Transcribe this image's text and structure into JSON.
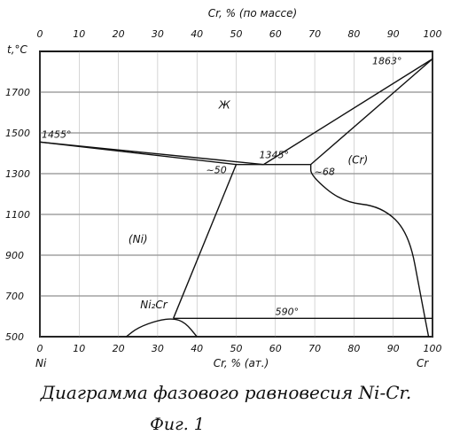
{
  "chart_data": {
    "type": "diagram",
    "top_axis": {
      "title": "Cr, % (по массе)",
      "ticks": [
        "0",
        "10",
        "20",
        "30",
        "40",
        "50",
        "60",
        "70",
        "80",
        "90",
        "100"
      ],
      "range": [
        0,
        100
      ]
    },
    "bottom_axis": {
      "title": "Cr, % (ат.)",
      "ticks": [
        "0",
        "10",
        "20",
        "30",
        "40",
        "50",
        "60",
        "70",
        "80",
        "90",
        "100"
      ],
      "range": [
        0,
        100
      ],
      "left_end_label": "Ni",
      "right_end_label": "Cr"
    },
    "y_axis": {
      "title": "t,°C",
      "ticks": [
        "1700",
        "1500",
        "1300",
        "1100",
        "900",
        "700",
        "500"
      ],
      "range": [
        500,
        1900
      ]
    },
    "regions": [
      {
        "label": "Ж",
        "x": 47,
        "t": 1620
      },
      {
        "label": "(Cr)",
        "x": 81,
        "t": 1350
      },
      {
        "label": "(Ni)",
        "x": 25,
        "t": 960
      },
      {
        "label": "Ni₂Cr",
        "x": 29,
        "t": 640
      }
    ],
    "points": [
      {
        "label": "1863°",
        "x": 100,
        "t": 1863
      },
      {
        "label": "1455°",
        "x": 0,
        "t": 1455
      },
      {
        "label": "1345°",
        "x": 57,
        "t": 1345
      },
      {
        "label": "~50",
        "x": 50,
        "t": 1345
      },
      {
        "label": "~68",
        "x": 69,
        "t": 1345
      },
      {
        "label": "590°",
        "x": 69,
        "t": 590
      }
    ],
    "lines": [
      {
        "name": "liquidus-ni",
        "points": [
          [
            0,
            1455
          ],
          [
            57,
            1345
          ]
        ]
      },
      {
        "name": "solidus-ni",
        "points": [
          [
            0,
            1455
          ],
          [
            50,
            1345
          ]
        ]
      },
      {
        "name": "liquidus-cr",
        "points": [
          [
            57,
            1345
          ],
          [
            100,
            1863
          ]
        ]
      },
      {
        "name": "solidus-cr",
        "points": [
          [
            69,
            1345
          ],
          [
            100,
            1863
          ]
        ]
      },
      {
        "name": "eutectic",
        "points": [
          [
            50,
            1345
          ],
          [
            69,
            1345
          ]
        ]
      },
      {
        "name": "solvus-ni",
        "points": [
          [
            50,
            1345
          ],
          [
            34,
            590
          ]
        ]
      },
      {
        "name": "solvus-cr",
        "points": [
          [
            69,
            1345
          ],
          [
            69,
            1290
          ],
          [
            77,
            1160
          ],
          [
            87,
            1140
          ],
          [
            94,
            1010
          ],
          [
            97,
            700
          ],
          [
            99,
            500
          ]
        ]
      },
      {
        "name": "ordering-590",
        "points": [
          [
            34,
            590
          ],
          [
            100,
            590
          ]
        ]
      },
      {
        "name": "ni2cr-dome",
        "points": [
          [
            22,
            500
          ],
          [
            25,
            545
          ],
          [
            30,
            580
          ],
          [
            34,
            590
          ],
          [
            37,
            570
          ],
          [
            40,
            500
          ]
        ]
      }
    ],
    "grid": true
  },
  "captions": {
    "title": "Диаграмма фазового равновесия Ni-Cr.",
    "figure": "Фиг. 1"
  }
}
